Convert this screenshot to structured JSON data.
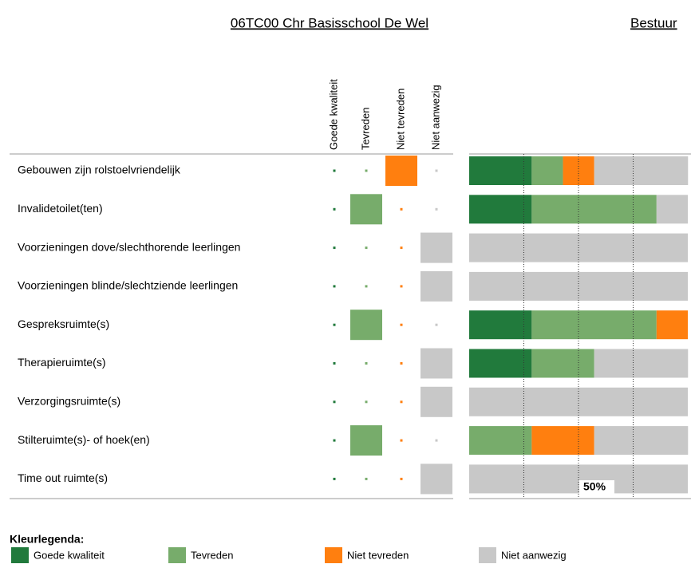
{
  "header": {
    "title": "06TC00 Chr Basisschool De Wel",
    "group": "Bestuur"
  },
  "chart_data": {
    "type": "bar",
    "orientation": "horizontal",
    "stacked": true,
    "categories": [
      "Gebouwen zijn rolstoelvriendelijk",
      "Invalidetoilet(ten)",
      "Voorzieningen dove/slechthorende leerlingen",
      "Voorzieningen blinde/slechtziende leerlingen",
      "Gespreksruimte(s)",
      "Therapieruimte(s)",
      "Verzorgingsruimte(s)",
      "Stilteruimte(s)- of hoek(en)",
      "Time out ruimte(s)"
    ],
    "answers": [
      "Niet tevreden",
      "Tevreden",
      "Niet aanwezig",
      "Niet aanwezig",
      "Tevreden",
      "Niet aanwezig",
      "Niet aanwezig",
      "Tevreden",
      "Niet aanwezig"
    ],
    "series": [
      {
        "name": "Goede kwaliteit",
        "color": "#217a3c",
        "values": [
          28.6,
          28.6,
          0,
          0,
          28.6,
          28.6,
          0,
          0,
          0
        ]
      },
      {
        "name": "Tevreden",
        "color": "#77ac6b",
        "values": [
          14.3,
          57.1,
          0,
          0,
          57.1,
          28.6,
          0,
          28.6,
          0
        ]
      },
      {
        "name": "Niet tevreden",
        "color": "#ff7f0f",
        "values": [
          14.3,
          0,
          0,
          0,
          14.3,
          0,
          0,
          28.6,
          0
        ]
      },
      {
        "name": "Niet aanwezig",
        "color": "#c8c8c8",
        "values": [
          42.9,
          14.3,
          100,
          100,
          0,
          42.9,
          100,
          42.9,
          100
        ]
      }
    ],
    "xlim": [
      0,
      100
    ],
    "xticks": [
      {
        "value": 25,
        "label": null
      },
      {
        "value": 50,
        "label": "50%"
      },
      {
        "value": 75,
        "label": null
      }
    ],
    "grid": true,
    "legend_title": "Kleurlegenda:"
  }
}
